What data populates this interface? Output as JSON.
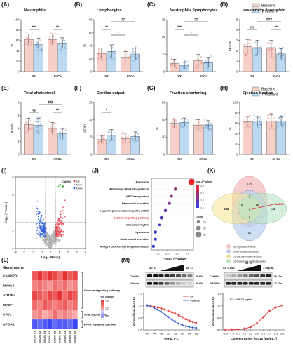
{
  "colors": {
    "baseline": "#f6cfc9",
    "treatment": "#bcd9f1",
    "pt_base": "#e07a70",
    "pt_treat": "#4a86c4",
    "volcano_up": "#e63946",
    "volcano_down": "#2b5fd9",
    "volcano_none": "#b0b0b0",
    "volcano_hl": "#1aa51a",
    "venn_pink": "#f6c3c6",
    "venn_blue": "#b9d1ef",
    "venn_yellow": "#f6e79b",
    "venn_green": "#b8e5c5",
    "line_sx": "#e23b3b",
    "line_vehicle": "#2b56d9",
    "red_text": "#e0152b"
  },
  "legend_top": {
    "baseline": "Baseline",
    "treatment": "Treatment"
  },
  "legend_mid": {
    "baseline": "Baseline",
    "treatment": "Treatment"
  },
  "panels": {
    "A": {
      "letter": "(A)",
      "title": "Neutrophils",
      "ylabel": "%"
    },
    "B": {
      "letter": "(B)",
      "title": "Lymphocytes",
      "ylabel": "%"
    },
    "C": {
      "letter": "(C)",
      "title": "Neutrophils /lymphocytes",
      "ylabel": ""
    },
    "D": {
      "letter": "(D)",
      "title": "low-density lipoprotein",
      "ylabel": "Mmol/L"
    },
    "E": {
      "letter": "(E)",
      "title": "Total cholesterol",
      "ylabel": "Mmol/L"
    },
    "F": {
      "letter": "(F)",
      "title": "Cardiac output",
      "ylabel": "L/min"
    },
    "G": {
      "letter": "(G)",
      "title": "Fraction shortening",
      "ylabel": "%"
    },
    "H": {
      "letter": "(H)",
      "title": "Ejection fraction",
      "ylabel": "%"
    },
    "I": {
      "letter": "(I)"
    },
    "J": {
      "letter": "(J)"
    },
    "K": {
      "letter": "(K)"
    },
    "L": {
      "letter": "(L)"
    },
    "M": {
      "letter": "(M)"
    }
  },
  "chart_data": [
    {
      "id": "A",
      "type": "bar",
      "title": "Neutrophils",
      "ylabel": "%",
      "ylim": [
        0,
        100
      ],
      "yticks": [
        "0",
        "20",
        "40",
        "60",
        "80",
        "100"
      ],
      "categories": [
        "SX",
        "At-Ca"
      ],
      "series": [
        {
          "name": "Baseline",
          "values": [
            62,
            62
          ],
          "err": [
            10,
            10
          ]
        },
        {
          "name": "Treatment",
          "values": [
            52,
            55
          ],
          "err": [
            12,
            10
          ]
        }
      ],
      "annotations": [
        {
          "text": "***",
          "over": "SX"
        },
        {
          "text": "**",
          "over": "At-Ca"
        }
      ]
    },
    {
      "id": "B",
      "type": "bar",
      "title": "Lymphocytes",
      "ylabel": "%",
      "ylim": [
        0,
        80
      ],
      "yticks": [
        "0",
        "20",
        "40",
        "60",
        "80"
      ],
      "categories": [
        "SX",
        "At-Ca"
      ],
      "series": [
        {
          "name": "Baseline",
          "values": [
            28,
            22
          ],
          "err": [
            8,
            9
          ]
        },
        {
          "name": "Treatment",
          "values": [
            31,
            27
          ],
          "err": [
            10,
            9
          ]
        }
      ],
      "annotations": [
        {
          "text": "##",
          "span": "across"
        },
        {
          "text": "**",
          "over": "SX"
        },
        {
          "text": "*",
          "span": "inner"
        }
      ]
    },
    {
      "id": "C",
      "type": "bar",
      "title": "Neutrophils /lymphocytes",
      "ylabel": "",
      "ylim": [
        0,
        15
      ],
      "yticks": [
        "0",
        "5",
        "10",
        "15"
      ],
      "categories": [
        "SX",
        "At-Ca"
      ],
      "series": [
        {
          "name": "Baseline",
          "values": [
            2.4,
            3.1
          ],
          "err": [
            1.2,
            1.8
          ]
        },
        {
          "name": "Treatment",
          "values": [
            1.8,
            2.6
          ],
          "err": [
            1.0,
            1.5
          ]
        }
      ],
      "annotations": [
        {
          "text": "##",
          "span": "across"
        },
        {
          "text": "***",
          "over": "SX"
        },
        {
          "text": "*",
          "span": "inner"
        }
      ]
    },
    {
      "id": "D",
      "type": "bar",
      "title": "low-density lipoprotein",
      "ylabel": "Mmol/L",
      "ylim": [
        0,
        5
      ],
      "yticks": [
        "0",
        "1",
        "2",
        "3",
        "4",
        "5"
      ],
      "categories": [
        "SX",
        "At-Ca"
      ],
      "series": [
        {
          "name": "Baseline",
          "values": [
            2.4,
            2.3
          ],
          "err": [
            0.7,
            0.7
          ]
        },
        {
          "name": "Treatment",
          "values": [
            2.3,
            1.7
          ],
          "err": [
            0.7,
            0.5
          ]
        }
      ],
      "annotations": [
        {
          "text": "ns",
          "over": "SX"
        },
        {
          "text": "###",
          "span": "across"
        },
        {
          "text": "**",
          "over": "At-Ca"
        }
      ]
    },
    {
      "id": "E",
      "type": "bar",
      "title": "Total cholesterol",
      "ylabel": "Mmol/L",
      "ylim": [
        0,
        8
      ],
      "yticks": [
        "0",
        "2",
        "4",
        "6",
        "8"
      ],
      "categories": [
        "SX",
        "At-Ca"
      ],
      "series": [
        {
          "name": "Baseline",
          "values": [
            4.6,
            4.0
          ],
          "err": [
            1.0,
            0.9
          ]
        },
        {
          "name": "Treatment",
          "values": [
            4.5,
            3.2
          ],
          "err": [
            1.1,
            0.7
          ]
        }
      ],
      "annotations": [
        {
          "text": "ns",
          "over": "SX"
        },
        {
          "text": "###",
          "span": "across"
        },
        {
          "text": "**",
          "over": "At-Ca"
        }
      ]
    },
    {
      "id": "F",
      "type": "bar",
      "title": "Cardiac output",
      "ylabel": "L/min",
      "ylim": [
        0,
        15
      ],
      "yticks": [
        "0",
        "5",
        "10",
        "15"
      ],
      "categories": [
        "SX",
        "At-Ca"
      ],
      "series": [
        {
          "name": "Baseline",
          "values": [
            4.3,
            4.6
          ],
          "err": [
            1.0,
            1.5
          ]
        },
        {
          "name": "Treatment",
          "values": [
            5.6,
            5.2
          ],
          "err": [
            1.6,
            1.3
          ]
        }
      ],
      "annotations": [
        {
          "text": "*",
          "over": "SX"
        }
      ]
    },
    {
      "id": "G",
      "type": "bar",
      "title": "Fraction shortening",
      "ylabel": "%",
      "ylim": [
        0,
        60
      ],
      "yticks": [
        "0",
        "20",
        "40",
        "60"
      ],
      "categories": [
        "SX",
        "At-Ca"
      ],
      "series": [
        {
          "name": "Baseline",
          "values": [
            36,
            34
          ],
          "err": [
            5,
            6
          ]
        },
        {
          "name": "Treatment",
          "values": [
            37,
            34
          ],
          "err": [
            5,
            5
          ]
        }
      ],
      "annotations": []
    },
    {
      "id": "H",
      "type": "bar",
      "title": "Ejection fraction",
      "ylabel": "%",
      "ylim": [
        0,
        100
      ],
      "yticks": [
        "0",
        "20",
        "40",
        "60",
        "80",
        "100"
      ],
      "categories": [
        "SX",
        "At-Ca"
      ],
      "series": [
        {
          "name": "Baseline",
          "values": [
            63,
            64
          ],
          "err": [
            10,
            12
          ]
        },
        {
          "name": "Treatment",
          "values": [
            64,
            64
          ],
          "err": [
            9,
            10
          ]
        }
      ],
      "annotations": []
    },
    {
      "id": "I",
      "type": "scatter",
      "title": "",
      "xlabel": "Log₂(Ratio)",
      "ylabel": "-log₁₀(P value)",
      "xlim": [
        -4,
        4
      ],
      "ylim": [
        0,
        8
      ],
      "xticks": [
        "-4",
        "-3",
        "-2",
        "-1",
        "0",
        "1",
        "2",
        "3",
        "4"
      ],
      "yticks": [
        "0",
        "2",
        "4",
        "6",
        "8"
      ],
      "legend": [
        "Up",
        "None",
        "Down"
      ],
      "highlight": "CaMKII"
    },
    {
      "id": "J",
      "type": "scatter",
      "title": "",
      "xlabel": "-log₁₀ (P value)",
      "categories": [
        "Ribosome",
        "Aminoacyl-tRNA biosynthesis",
        "ABC transporters",
        "Pancreatic secretion",
        "Hypertrophic cardiomyopathy (HCM)",
        "Calcium signaling pathway",
        "Circadian rhythm",
        "Lysosome",
        "Gastric acid secretion",
        "Antigen processing and presentation"
      ],
      "values": [
        3.2,
        2.4,
        2.2,
        2.1,
        1.9,
        1.7,
        1.6,
        1.4,
        1.4,
        1.3
      ],
      "counts": [
        30,
        10,
        8,
        8,
        10,
        12,
        6,
        10,
        8,
        9
      ],
      "xticks": [
        "1.5",
        "2.0",
        "2.5",
        "3.0"
      ],
      "size_legend_title": "Count",
      "size_legend": [
        "10",
        "20",
        "30"
      ],
      "color_legend_title": "-log₁₀(P value)",
      "color_legend": [
        "3.0",
        "2.5",
        "2.0",
        "1.5"
      ],
      "highlight": "Calcium signaling pathway"
    },
    {
      "id": "L",
      "type": "heatmap",
      "title": "Gene name",
      "rows": [
        "CAMK2D",
        "MYH14",
        "ATP2B4",
        "MYOF",
        "CAV1",
        "APOA1"
      ],
      "cols": [
        "SX1 Vs C1",
        "SX1 Vs C2",
        "SX1 Vs C3",
        "SX2 Vs C1",
        "SX2 Vs C2",
        "SX2 Vs C3",
        "SX3 Vs C1",
        "SX3 Vs C2",
        "SX3 Vs C3"
      ],
      "values": [
        [
          1.6,
          1.8,
          1.6,
          1.9,
          1.7,
          1.5,
          1.8,
          1.6,
          1.7
        ],
        [
          1.4,
          1.5,
          1.4,
          1.3,
          1.5,
          1.4,
          1.5,
          1.3,
          1.4
        ],
        [
          1.7,
          1.6,
          1.5,
          1.7,
          1.6,
          1.8,
          1.5,
          1.7,
          1.6
        ],
        [
          1.5,
          1.4,
          1.6,
          1.5,
          1.4,
          1.5,
          1.6,
          1.4,
          1.5
        ],
        [
          1.3,
          1.4,
          1.2,
          1.3,
          1.5,
          1.3,
          1.4,
          1.3,
          1.2
        ],
        [
          0.5,
          0.6,
          0.5,
          0.4,
          0.6,
          0.5,
          0.5,
          0.6,
          0.4
        ]
      ],
      "groups": [
        {
          "label": "Calcium signaling pathway",
          "rows": [
            0,
            3
          ]
        },
        {
          "label": "Viral myocarditis",
          "rows": [
            4,
            4
          ]
        },
        {
          "label": "PPAR signaling pathway",
          "rows": [
            5,
            5
          ]
        }
      ],
      "colorbar_title": "Fold change",
      "colorbar": [
        "1.6",
        "1.2",
        "0.8"
      ]
    },
    {
      "id": "M1",
      "type": "line",
      "title": "",
      "xlabel": "Temp. (°C)",
      "ylabel": "Normalized density",
      "x": [
        40,
        42,
        44,
        46,
        48,
        50,
        52,
        54,
        56,
        58,
        60,
        62,
        64,
        66,
        68
      ],
      "series": [
        {
          "name": "SX",
          "values": [
            1.0,
            0.98,
            0.95,
            0.92,
            0.88,
            0.84,
            0.79,
            0.73,
            0.67,
            0.6,
            0.52,
            0.44,
            0.38,
            0.33,
            0.28
          ]
        },
        {
          "name": "Vehicle",
          "values": [
            1.0,
            0.96,
            0.9,
            0.83,
            0.74,
            0.64,
            0.53,
            0.43,
            0.34,
            0.26,
            0.2,
            0.15,
            0.12,
            0.1,
            0.08
          ]
        }
      ],
      "ylim": [
        0,
        1.5
      ],
      "yticks": [
        "0.0",
        "0.5",
        "1.0",
        "1.5"
      ],
      "xticks": [
        "40",
        "44",
        "48",
        "52",
        "56",
        "60",
        "64",
        "68"
      ]
    },
    {
      "id": "M2",
      "type": "line",
      "title": "",
      "xlabel": "Concentration [log10 (μg/mL)]",
      "ylabel": "Normalized density",
      "x": [
        -1.5,
        -1.0,
        -0.5,
        0.0,
        0.5,
        1.0,
        1.5,
        2.0,
        2.5,
        3.0
      ],
      "series": [
        {
          "name": "SX",
          "values": [
            0.0,
            0.01,
            0.02,
            0.05,
            0.12,
            0.28,
            0.52,
            0.78,
            0.93,
            1.0
          ]
        }
      ],
      "ylim": [
        0,
        1.5
      ],
      "yticks": [
        "0.0",
        "0.5",
        "1.0",
        "1.5"
      ],
      "xticks": [
        "-1.5",
        "-1.0",
        "-0.5",
        "0.0",
        "0.5",
        "1.0",
        "1.5",
        "2.0",
        "2.5",
        "3.0"
      ],
      "annotation": "IC₅₀=59.72 μg/mL"
    }
  ],
  "volcano": {
    "legend": [
      "Up",
      "None",
      "Down"
    ],
    "label": "CaMKII"
  },
  "venn": {
    "numbers": [
      "137",
      "3",
      "648",
      "175",
      "0",
      "16",
      "1",
      "0",
      "56"
    ],
    "callout": "CaMKII",
    "legend": [
      "Up-regulated proteins",
      "Down-regulated proteins",
      "Contraction related proteins",
      "Cardiovascular related proteins"
    ]
  },
  "blot": {
    "left_temp_start": "40 °C",
    "left_temp_end": "68 °C",
    "right_temp": "53 °C",
    "right_conc_start": "SX  0.005",
    "right_conc_end": "1 mg/mL",
    "rows_left": [
      "CaMKII",
      "Vehicle"
    ],
    "rows_right": [
      "CaMKII",
      "GAPDH"
    ],
    "kda_left": [
      "59 kDa",
      "59 kDa"
    ],
    "kda_right": [
      "59 kDa",
      "37 kDa"
    ],
    "series_legend": [
      "SX",
      "Vehicle"
    ]
  }
}
